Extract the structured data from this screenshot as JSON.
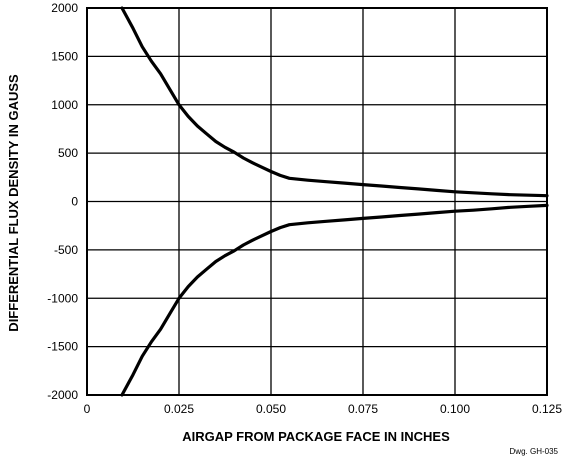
{
  "chart_data": {
    "type": "line",
    "title": "",
    "xlabel": "AIRGAP FROM PACKAGE FACE IN INCHES",
    "ylabel": "DIFFERENTIAL FLUX DENSITY IN GAUSS",
    "xlim": [
      0,
      0.125
    ],
    "ylim": [
      -2000,
      2000
    ],
    "x_ticks": [
      0,
      0.025,
      0.05,
      0.075,
      0.1,
      0.125
    ],
    "x_tick_labels": [
      "0",
      "0.025",
      "0.050",
      "0.075",
      "0.100",
      "0.125"
    ],
    "y_ticks": [
      2000,
      1500,
      1000,
      500,
      0,
      -500,
      -1000,
      -1500,
      -2000
    ],
    "y_tick_labels": [
      "2000",
      "1500",
      "1000",
      "500",
      "0",
      "-500",
      "-1000",
      "-1500",
      "-2000"
    ],
    "grid": true,
    "legend": "none",
    "colors": {
      "line": "#000000",
      "grid": "#000000",
      "background": "#ffffff"
    },
    "series": [
      {
        "x": [
          0.0095,
          0.0125,
          0.015,
          0.0175,
          0.02,
          0.0225,
          0.025,
          0.0275,
          0.03,
          0.0325,
          0.035,
          0.0375,
          0.04,
          0.0425,
          0.045,
          0.0475,
          0.05,
          0.0525,
          0.055,
          0.06,
          0.065,
          0.07,
          0.075,
          0.08,
          0.085,
          0.09,
          0.095,
          0.1,
          0.105,
          0.11,
          0.115,
          0.12,
          0.125
        ],
        "y": [
          2000,
          1790,
          1600,
          1450,
          1320,
          1160,
          1000,
          880,
          780,
          700,
          620,
          560,
          510,
          450,
          400,
          355,
          310,
          270,
          240,
          220,
          205,
          190,
          175,
          160,
          145,
          130,
          115,
          100,
          90,
          80,
          70,
          65,
          60
        ]
      },
      {
        "x": [
          0.0095,
          0.0125,
          0.015,
          0.0175,
          0.02,
          0.0225,
          0.025,
          0.0275,
          0.03,
          0.0325,
          0.035,
          0.0375,
          0.04,
          0.0425,
          0.045,
          0.0475,
          0.05,
          0.0525,
          0.055,
          0.06,
          0.065,
          0.07,
          0.075,
          0.08,
          0.085,
          0.09,
          0.095,
          0.1,
          0.105,
          0.11,
          0.115,
          0.12,
          0.125
        ],
        "y": [
          -2000,
          -1790,
          -1600,
          -1450,
          -1320,
          -1160,
          -1000,
          -880,
          -780,
          -700,
          -620,
          -560,
          -510,
          -450,
          -400,
          -355,
          -310,
          -270,
          -240,
          -220,
          -205,
          -190,
          -175,
          -160,
          -145,
          -130,
          -115,
          -100,
          -90,
          -75,
          -60,
          -50,
          -40
        ]
      }
    ],
    "annotation": "Dwg. GH-035"
  }
}
